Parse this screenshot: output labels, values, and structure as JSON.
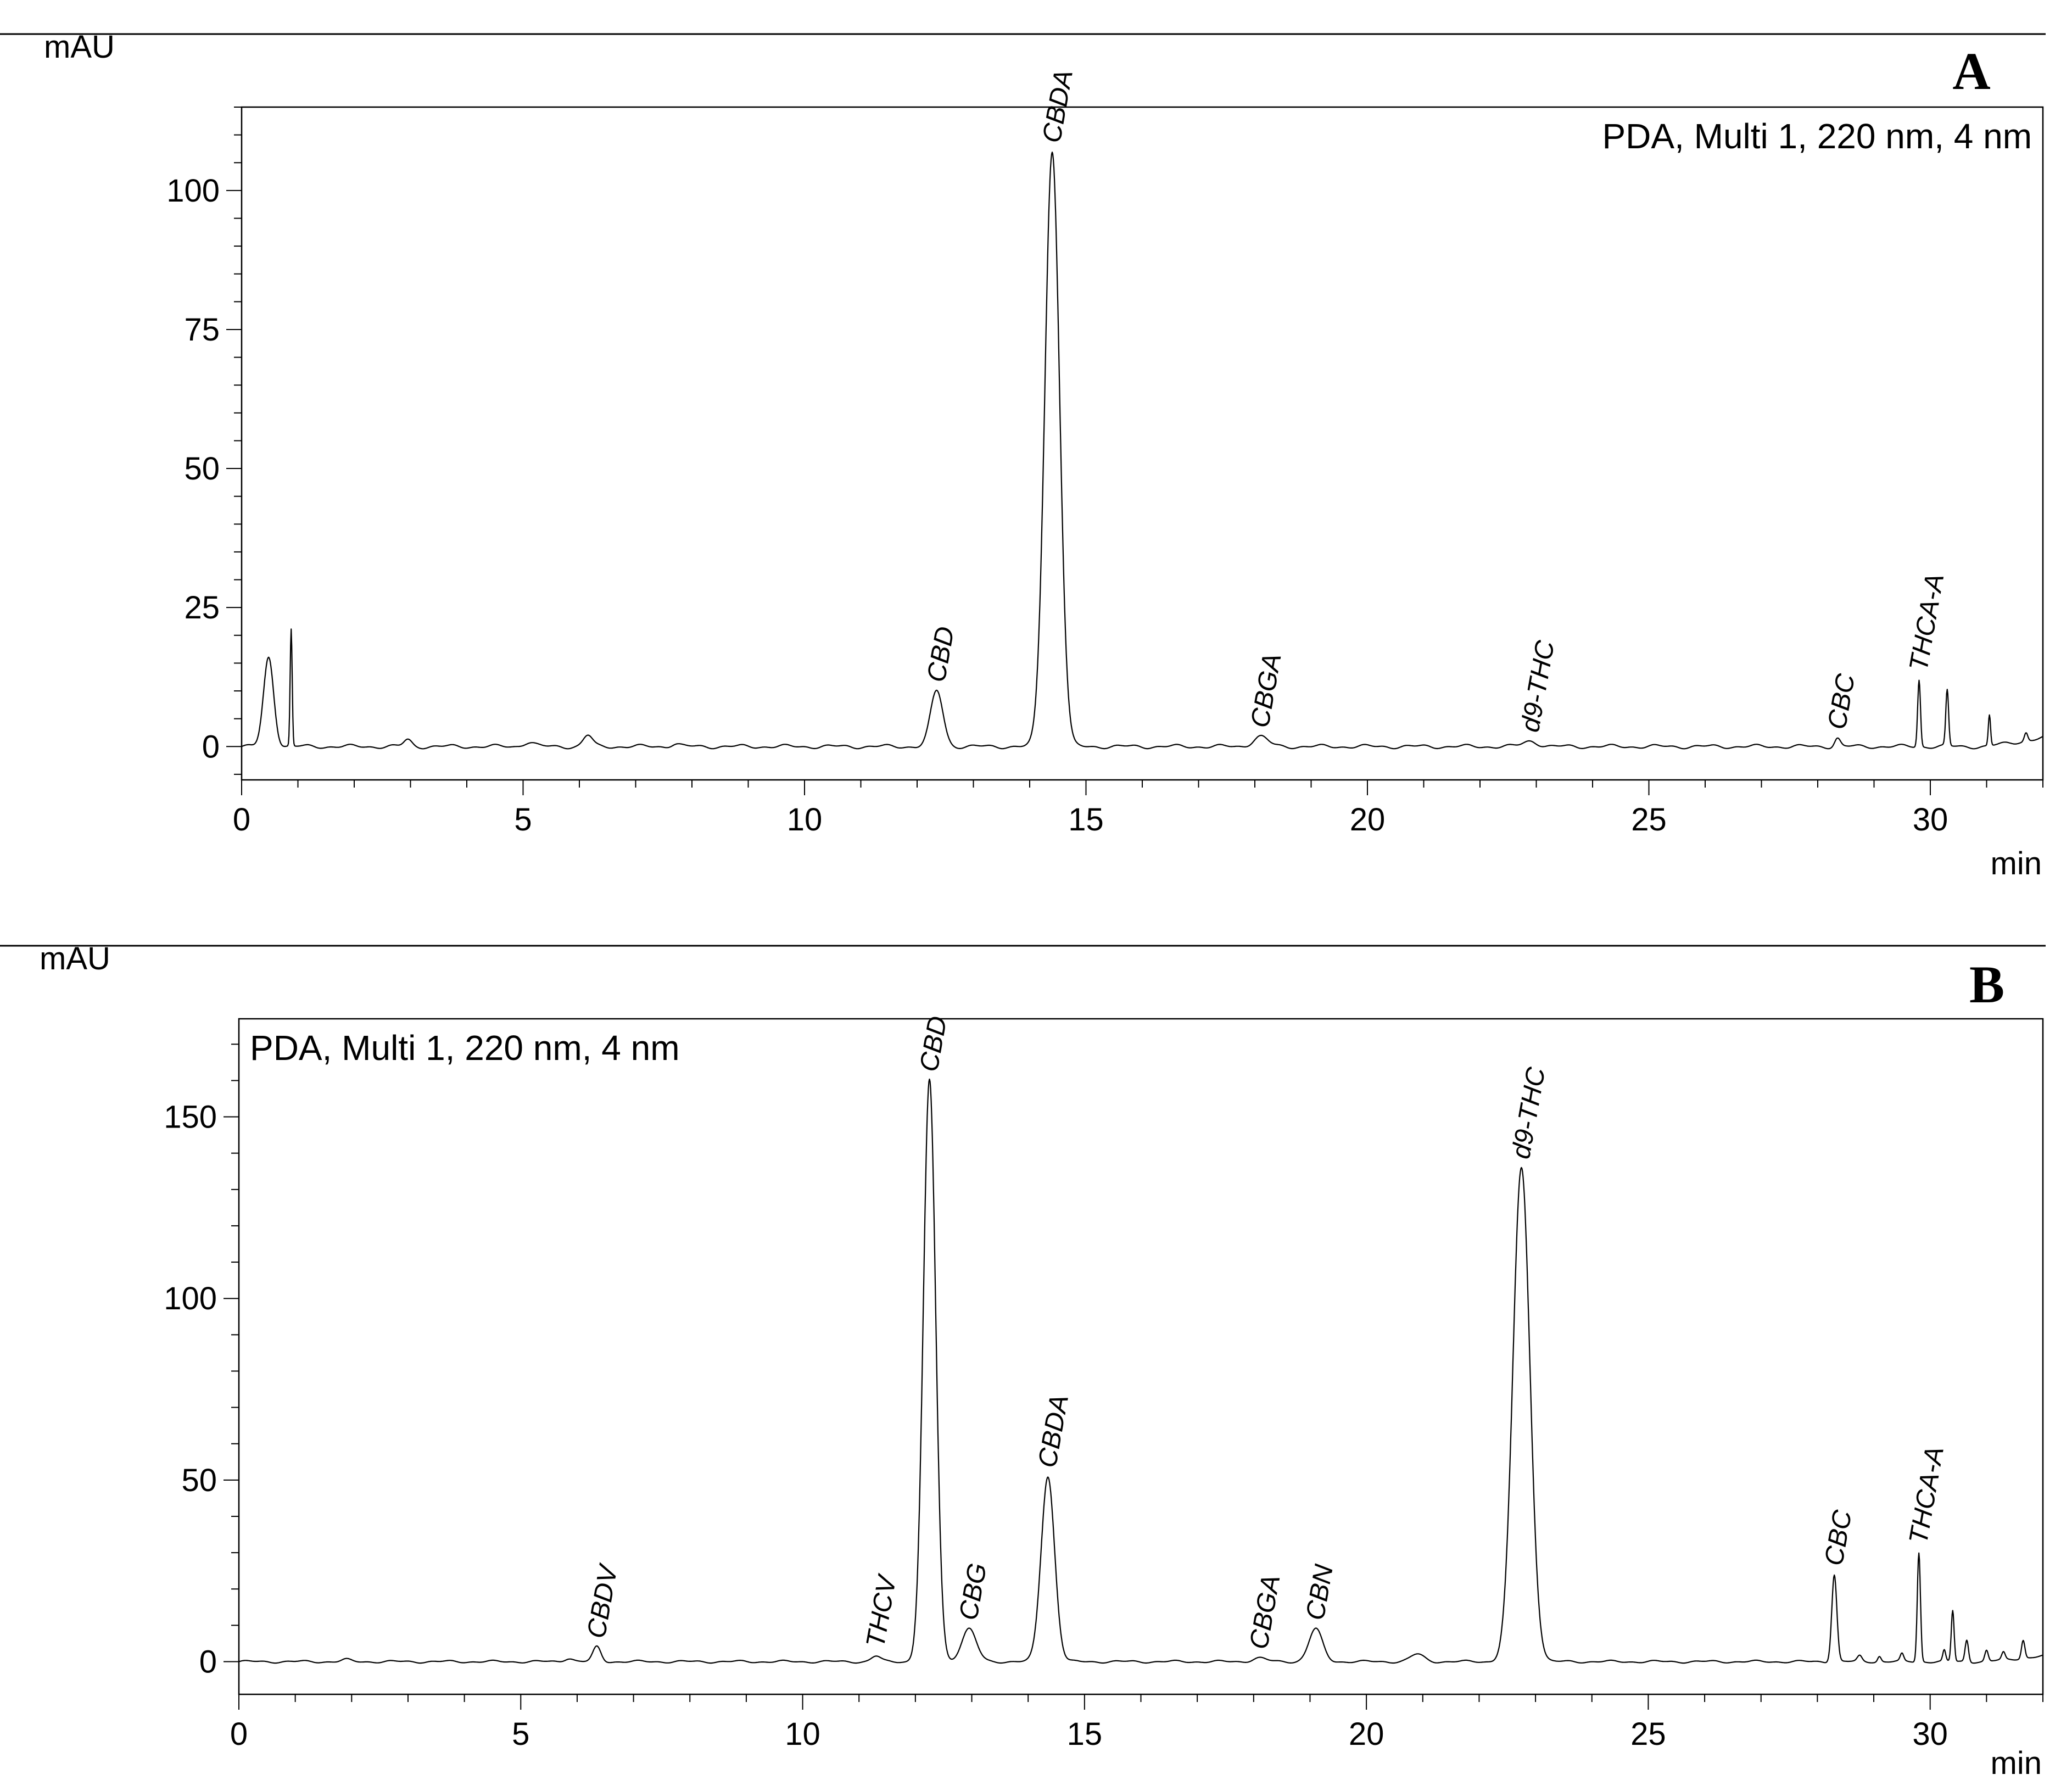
{
  "figure": {
    "panels": [
      {
        "id": "A",
        "panel_label": "A",
        "detector_label": "PDA, Multi 1, 220 nm, 4 nm",
        "detector_pos": "top-right",
        "y_unit": "mAU",
        "x_unit": "min"
      },
      {
        "id": "B",
        "panel_label": "B",
        "detector_label": "PDA, Multi 1, 220 nm, 4 nm",
        "detector_pos": "top-left",
        "y_unit": "mAU",
        "x_unit": "min"
      }
    ]
  },
  "chart_data": [
    {
      "type": "line",
      "panel": "A",
      "xlabel": "min",
      "ylabel": "mAU",
      "xlim": [
        0,
        32
      ],
      "ylim": [
        -6,
        115
      ],
      "x_ticks": [
        0,
        5,
        10,
        15,
        20,
        25,
        30
      ],
      "y_ticks": [
        0,
        25,
        50,
        75,
        100
      ],
      "grid": false,
      "peaks": [
        {
          "rt": 0.48,
          "height": 16,
          "width": 0.09
        },
        {
          "rt": 0.88,
          "height": 21,
          "width": 0.018
        },
        {
          "rt": 2.95,
          "height": 1.2,
          "width": 0.07
        },
        {
          "rt": 5.1,
          "height": 0.8,
          "width": 0.1
        },
        {
          "rt": 6.15,
          "height": 2,
          "width": 0.08
        },
        {
          "rt": 7.7,
          "height": 0.5,
          "width": 0.08
        },
        {
          "rt": 12.35,
          "height": 10,
          "width": 0.11
        },
        {
          "rt": 14.4,
          "height": 107,
          "width": 0.13
        },
        {
          "rt": 18.1,
          "height": 1.8,
          "width": 0.13
        },
        {
          "rt": 22.9,
          "height": 1,
          "width": 0.13
        },
        {
          "rt": 28.35,
          "height": 1.5,
          "width": 0.05
        },
        {
          "rt": 29.8,
          "height": 12,
          "width": 0.025
        },
        {
          "rt": 30.3,
          "height": 10,
          "width": 0.025
        },
        {
          "rt": 31.05,
          "height": 5.5,
          "width": 0.02
        },
        {
          "rt": 31.7,
          "height": 1.5,
          "width": 0.03
        }
      ],
      "peak_labels": [
        {
          "name": "CBD",
          "rt": 12.35,
          "height": 10
        },
        {
          "name": "CBDA",
          "rt": 14.4,
          "height": 107
        },
        {
          "name": "CBGA",
          "rt": 18.1,
          "height": 1.8
        },
        {
          "name": "d9-THC",
          "rt": 22.9,
          "height": 1
        },
        {
          "name": "CBC",
          "rt": 28.35,
          "height": 1.5
        },
        {
          "name": "THCA-A",
          "rt": 29.8,
          "height": 12
        }
      ]
    },
    {
      "type": "line",
      "panel": "B",
      "xlabel": "min",
      "ylabel": "mAU",
      "xlim": [
        0,
        32
      ],
      "ylim": [
        -9,
        177
      ],
      "x_ticks": [
        0,
        5,
        10,
        15,
        20,
        25,
        30
      ],
      "y_ticks": [
        0,
        50,
        100,
        150
      ],
      "grid": false,
      "peaks": [
        {
          "rt": 1.9,
          "height": 0.5,
          "width": 0.08
        },
        {
          "rt": 5.85,
          "height": 1,
          "width": 0.08
        },
        {
          "rt": 6.35,
          "height": 4,
          "width": 0.07
        },
        {
          "rt": 11.3,
          "height": 1.5,
          "width": 0.08
        },
        {
          "rt": 12.25,
          "height": 160,
          "width": 0.11
        },
        {
          "rt": 12.95,
          "height": 9,
          "width": 0.13
        },
        {
          "rt": 14.35,
          "height": 51,
          "width": 0.12
        },
        {
          "rt": 18.1,
          "height": 1,
          "width": 0.12
        },
        {
          "rt": 19.1,
          "height": 9,
          "width": 0.12
        },
        {
          "rt": 20.9,
          "height": 2,
          "width": 0.12
        },
        {
          "rt": 22.75,
          "height": 136,
          "width": 0.15
        },
        {
          "rt": 28.3,
          "height": 24,
          "width": 0.045
        },
        {
          "rt": 28.75,
          "height": 1.5,
          "width": 0.04
        },
        {
          "rt": 29.1,
          "height": 1.5,
          "width": 0.03
        },
        {
          "rt": 29.5,
          "height": 2,
          "width": 0.03
        },
        {
          "rt": 29.8,
          "height": 30,
          "width": 0.028
        },
        {
          "rt": 30.25,
          "height": 3,
          "width": 0.025
        },
        {
          "rt": 30.4,
          "height": 14,
          "width": 0.025
        },
        {
          "rt": 30.65,
          "height": 6,
          "width": 0.03
        },
        {
          "rt": 31.0,
          "height": 3,
          "width": 0.03
        },
        {
          "rt": 31.3,
          "height": 2,
          "width": 0.03
        },
        {
          "rt": 31.65,
          "height": 5,
          "width": 0.03
        }
      ],
      "peak_labels": [
        {
          "name": "CBDV",
          "rt": 6.35,
          "height": 4
        },
        {
          "name": "THCV",
          "rt": 11.3,
          "height": 1.5
        },
        {
          "name": "CBD",
          "rt": 12.25,
          "height": 160
        },
        {
          "name": "CBG",
          "rt": 12.95,
          "height": 9
        },
        {
          "name": "CBDA",
          "rt": 14.35,
          "height": 51
        },
        {
          "name": "CBGA",
          "rt": 18.1,
          "height": 1
        },
        {
          "name": "CBN",
          "rt": 19.1,
          "height": 9
        },
        {
          "name": "d9-THC",
          "rt": 22.75,
          "height": 136
        },
        {
          "name": "CBC",
          "rt": 28.3,
          "height": 24
        },
        {
          "name": "THCA-A",
          "rt": 29.8,
          "height": 30
        }
      ]
    }
  ]
}
